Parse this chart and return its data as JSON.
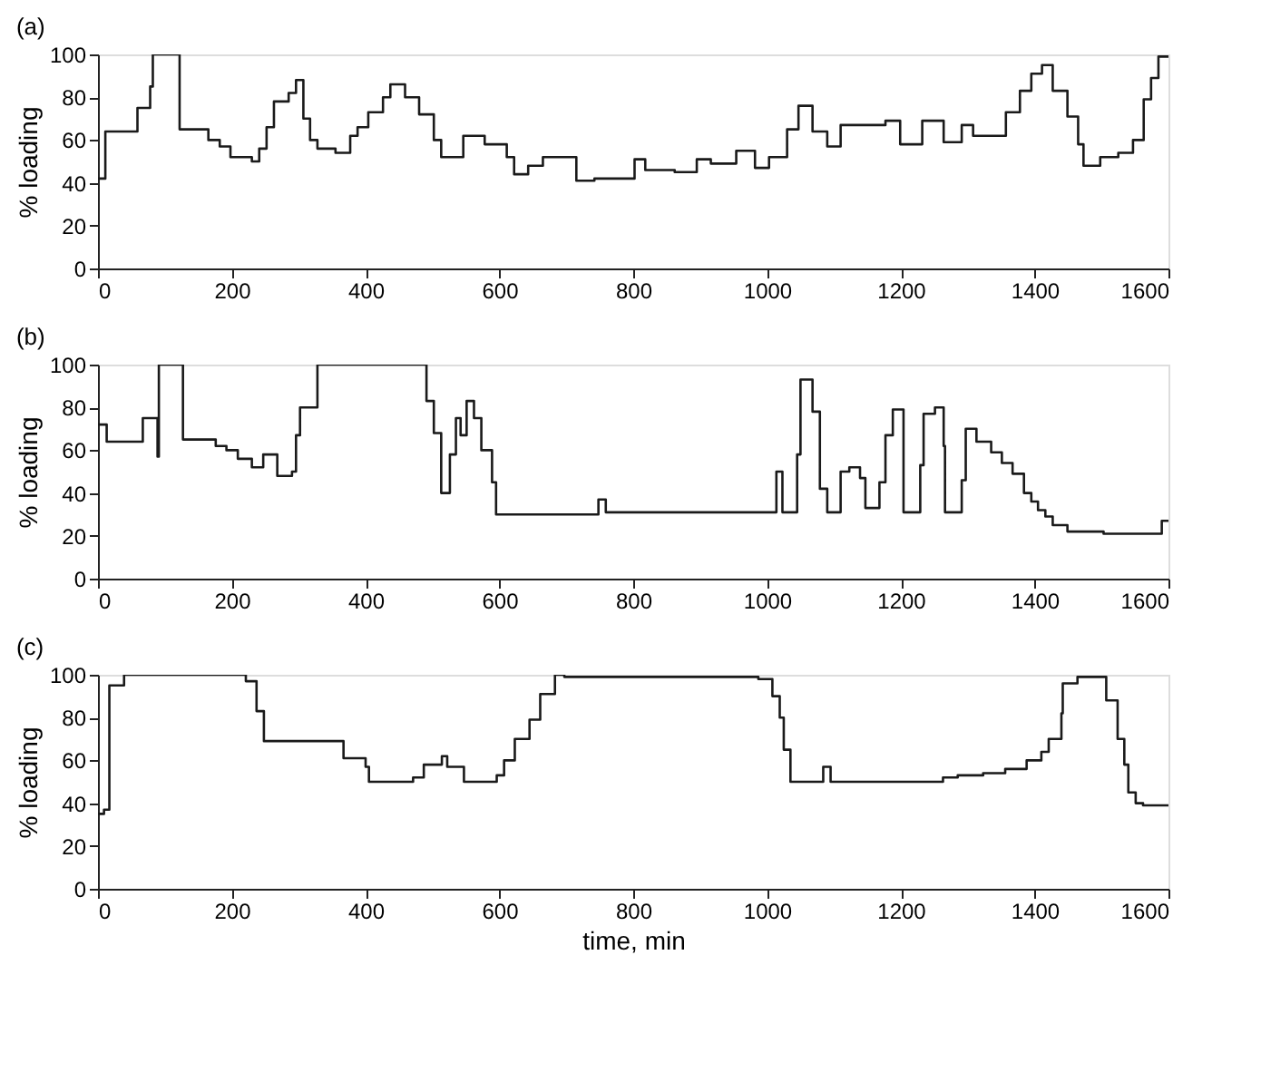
{
  "chart_data": [
    {
      "type": "step",
      "title": "(a)",
      "ylabel": "% loading",
      "color": "#1a1a1a",
      "grid": false,
      "xlim": [
        0,
        1600
      ],
      "xticks": [
        0,
        200,
        400,
        600,
        800,
        1000,
        1200,
        1400,
        1600
      ],
      "ylim": [
        0,
        100
      ],
      "yticks": [
        0,
        20,
        40,
        60,
        80,
        100
      ],
      "x": [
        0,
        11,
        59,
        78,
        82,
        122,
        165,
        182,
        198,
        230,
        241,
        252,
        263,
        285,
        296,
        307,
        317,
        328,
        355,
        377,
        388,
        404,
        426,
        437,
        459,
        480,
        502,
        513,
        546,
        578,
        611,
        622,
        643,
        665,
        699,
        715,
        742,
        802,
        818,
        862,
        895,
        916,
        954,
        982,
        1003,
        1030,
        1047,
        1068,
        1090,
        1110,
        1177,
        1199,
        1232,
        1264,
        1291,
        1308,
        1357,
        1378,
        1395,
        1411,
        1427,
        1449,
        1465,
        1473,
        1498,
        1525,
        1547,
        1563,
        1574,
        1585,
        1600
      ],
      "values": [
        42,
        64,
        75,
        85,
        100,
        65,
        60,
        57,
        52,
        50,
        56,
        66,
        78,
        82,
        88,
        70,
        60,
        56,
        54,
        62,
        66,
        73,
        80,
        86,
        80,
        72,
        60,
        52,
        62,
        58,
        52,
        44,
        48,
        52,
        52,
        41,
        42,
        51,
        46,
        45,
        51,
        49,
        55,
        47,
        52,
        65,
        76,
        64,
        57,
        67,
        69,
        58,
        69,
        59,
        67,
        62,
        73,
        83,
        91,
        95,
        83,
        71,
        58,
        48,
        52,
        54,
        60,
        79,
        89,
        99,
        99
      ]
    },
    {
      "type": "step",
      "title": "(b)",
      "ylabel": "% loading",
      "color": "#1a1a1a",
      "grid": false,
      "xlim": [
        0,
        1600
      ],
      "xticks": [
        0,
        200,
        400,
        600,
        800,
        1000,
        1200,
        1400,
        1600
      ],
      "ylim": [
        0,
        100
      ],
      "yticks": [
        0,
        20,
        40,
        60,
        80,
        100
      ],
      "x": [
        0,
        13,
        67,
        89,
        91,
        127,
        176,
        192,
        209,
        230,
        247,
        268,
        290,
        296,
        302,
        328,
        491,
        502,
        513,
        526,
        535,
        542,
        551,
        562,
        573,
        589,
        595,
        748,
        759,
        1014,
        1023,
        1045,
        1050,
        1068,
        1079,
        1090,
        1110,
        1123,
        1139,
        1147,
        1168,
        1177,
        1188,
        1204,
        1229,
        1234,
        1251,
        1264,
        1266,
        1291,
        1297,
        1313,
        1335,
        1351,
        1367,
        1384,
        1395,
        1405,
        1416,
        1427,
        1449,
        1503,
        1590,
        1600
      ],
      "values": [
        72,
        64,
        75,
        57,
        100,
        65,
        62,
        60,
        56,
        52,
        58,
        48,
        50,
        67,
        80,
        100,
        83,
        68,
        40,
        58,
        75,
        67,
        83,
        75,
        60,
        45,
        30,
        37,
        31,
        50,
        31,
        58,
        93,
        78,
        42,
        31,
        50,
        52,
        47,
        33,
        45,
        67,
        79,
        31,
        53,
        77,
        80,
        62,
        31,
        46,
        70,
        64,
        59,
        54,
        49,
        40,
        36,
        32,
        29,
        25,
        22,
        21,
        27,
        27
      ]
    },
    {
      "type": "step",
      "title": "(c)",
      "ylabel": "% loading",
      "xlabel": "time, min",
      "color": "#1a1a1a",
      "grid": false,
      "xlim": [
        0,
        1600
      ],
      "xticks": [
        0,
        200,
        400,
        600,
        800,
        1000,
        1200,
        1400,
        1600
      ],
      "ylim": [
        0,
        100
      ],
      "yticks": [
        0,
        20,
        40,
        60,
        80,
        100
      ],
      "x": [
        0,
        9,
        17,
        39,
        221,
        237,
        248,
        367,
        400,
        405,
        471,
        487,
        514,
        522,
        547,
        596,
        607,
        623,
        645,
        661,
        683,
        697,
        987,
        1008,
        1019,
        1025,
        1035,
        1084,
        1095,
        1263,
        1285,
        1323,
        1356,
        1388,
        1410,
        1421,
        1440,
        1442,
        1464,
        1507,
        1524,
        1534,
        1540,
        1551,
        1562,
        1600
      ],
      "values": [
        35,
        37,
        95,
        100,
        97,
        83,
        69,
        61,
        57,
        50,
        52,
        58,
        62,
        57,
        50,
        53,
        60,
        70,
        79,
        91,
        100,
        99,
        98,
        90,
        80,
        65,
        50,
        57,
        50,
        52,
        53,
        54,
        56,
        60,
        64,
        70,
        82,
        96,
        99,
        88,
        70,
        58,
        45,
        40,
        39,
        39
      ]
    }
  ]
}
